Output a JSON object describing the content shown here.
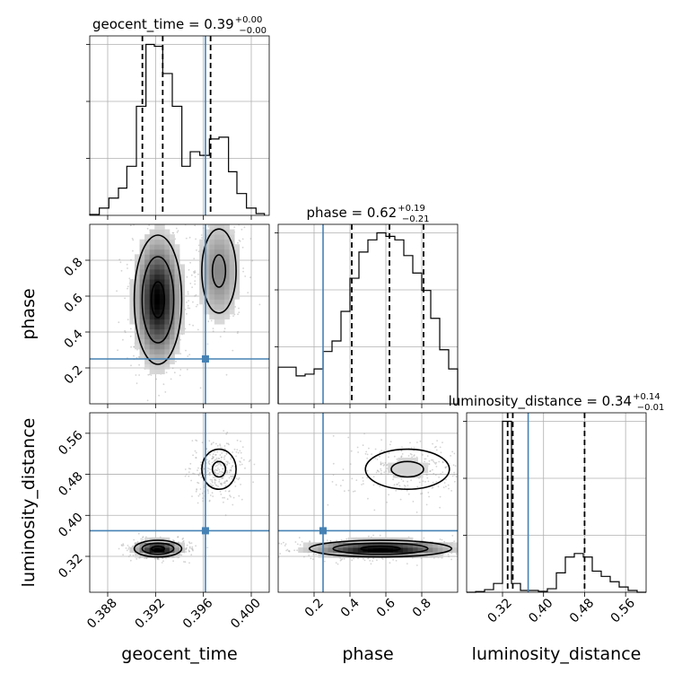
{
  "chart_data": {
    "type": "corner",
    "parameters": [
      "geocent_time",
      "phase",
      "luminosity_distance"
    ],
    "axis_labels": {
      "geocent_time": "geocent_time",
      "phase": "phase",
      "luminosity_distance": "luminosity_distance"
    },
    "titles": [
      {
        "param": "geocent_time",
        "name": "geocent_time",
        "value": "0.39",
        "plus": "+0.00",
        "minus": "−0.00"
      },
      {
        "param": "phase",
        "name": "phase",
        "value": "0.62",
        "plus": "+0.19",
        "minus": "−0.21"
      },
      {
        "param": "luminosity_distance",
        "name": "luminosity_distance",
        "value": "0.34",
        "plus": "+0.14",
        "minus": "−0.01"
      }
    ],
    "ranges": {
      "geocent_time": [
        0.3865,
        0.4015
      ],
      "phase": [
        0.0,
        1.0
      ],
      "luminosity_distance": [
        0.25,
        0.6
      ]
    },
    "ticks": {
      "geocent_time": [
        0.388,
        0.392,
        0.396,
        0.4
      ],
      "phase": [
        0.2,
        0.4,
        0.6,
        0.8
      ],
      "luminosity_distance_x": [
        0.32,
        0.4,
        0.48,
        0.56
      ],
      "luminosity_distance_y": [
        0.32,
        0.4,
        0.48,
        0.56
      ]
    },
    "tick_labels": {
      "geocent_time": [
        "0.388",
        "0.392",
        "0.396",
        "0.400"
      ],
      "phase": [
        "0.2",
        "0.4",
        "0.6",
        "0.8"
      ],
      "luminosity_distance_x": [
        "0.32",
        "0.40",
        "0.48",
        "0.56"
      ],
      "luminosity_distance_y": [
        "0.32",
        "0.40",
        "0.48",
        "0.56"
      ]
    },
    "truths": {
      "geocent_time": 0.39617,
      "phase": 0.25,
      "luminosity_distance": 0.37
    },
    "quantiles": {
      "geocent_time": [
        0.3909,
        0.3926,
        0.3966
      ],
      "phase": [
        0.41,
        0.62,
        0.81
      ],
      "luminosity_distance": [
        0.33,
        0.34,
        0.48
      ]
    },
    "histograms": {
      "geocent_time": {
        "edges": [
          0.3865,
          0.3873,
          0.3881,
          0.3889,
          0.3896,
          0.3904,
          0.3912,
          0.3919,
          0.3926,
          0.3934,
          0.3942,
          0.3949,
          0.3957,
          0.3965,
          0.3973,
          0.3981,
          0.3988,
          0.3996,
          0.4004,
          0.4011
        ],
        "counts": [
          0.005,
          0.04,
          0.095,
          0.15,
          0.27,
          0.6,
          0.94,
          0.93,
          0.78,
          0.6,
          0.27,
          0.35,
          0.33,
          0.42,
          0.43,
          0.24,
          0.12,
          0.04,
          0.01
        ]
      },
      "phase": {
        "edges": [
          0.0,
          0.05,
          0.1,
          0.15,
          0.2,
          0.25,
          0.3,
          0.35,
          0.4,
          0.45,
          0.5,
          0.55,
          0.6,
          0.65,
          0.7,
          0.75,
          0.8,
          0.85,
          0.9,
          0.95,
          1.0
        ],
        "counts": [
          0.21,
          0.21,
          0.16,
          0.17,
          0.2,
          0.3,
          0.36,
          0.53,
          0.72,
          0.87,
          0.94,
          0.98,
          0.96,
          0.94,
          0.85,
          0.75,
          0.65,
          0.49,
          0.31,
          0.2
        ]
      },
      "luminosity_distance": {
        "edges": [
          0.25,
          0.2675,
          0.285,
          0.3025,
          0.32,
          0.3375,
          0.355,
          0.3725,
          0.39,
          0.4075,
          0.425,
          0.4425,
          0.46,
          0.4775,
          0.495,
          0.5125,
          0.53,
          0.5475,
          0.565,
          0.5825,
          0.6
        ],
        "counts": [
          0,
          0.004,
          0.015,
          0.05,
          0.97,
          0.05,
          0.01,
          0.01,
          0.005,
          0.02,
          0.11,
          0.2,
          0.22,
          0.2,
          0.12,
          0.09,
          0.06,
          0.03,
          0.01,
          0
        ]
      }
    },
    "joint_modes": [
      {
        "x_param": "geocent_time",
        "y_param": "phase",
        "modes": [
          {
            "x": 0.3922,
            "y": 0.58,
            "sx": 0.0011,
            "sy": 0.2,
            "w": 0.72
          },
          {
            "x": 0.3973,
            "y": 0.74,
            "sx": 0.0011,
            "sy": 0.18,
            "w": 0.28
          }
        ]
      },
      {
        "x_param": "geocent_time",
        "y_param": "luminosity_distance",
        "modes": [
          {
            "x": 0.3922,
            "y": 0.335,
            "sx": 0.0011,
            "sy": 0.009,
            "w": 0.72
          },
          {
            "x": 0.3973,
            "y": 0.49,
            "sx": 0.0011,
            "sy": 0.03,
            "w": 0.28
          }
        ]
      },
      {
        "x_param": "phase",
        "y_param": "luminosity_distance",
        "modes": [
          {
            "x": 0.57,
            "y": 0.335,
            "sx": 0.22,
            "sy": 0.009,
            "w": 0.72
          },
          {
            "x": 0.72,
            "y": 0.49,
            "sx": 0.18,
            "sy": 0.03,
            "w": 0.28
          }
        ]
      }
    ],
    "colors": {
      "truth": "#4682b4",
      "hist": "#000000",
      "quantile": "#000000",
      "scatter": "#a0a0a0",
      "grid": "#b0b0b0"
    },
    "grid": true
  }
}
